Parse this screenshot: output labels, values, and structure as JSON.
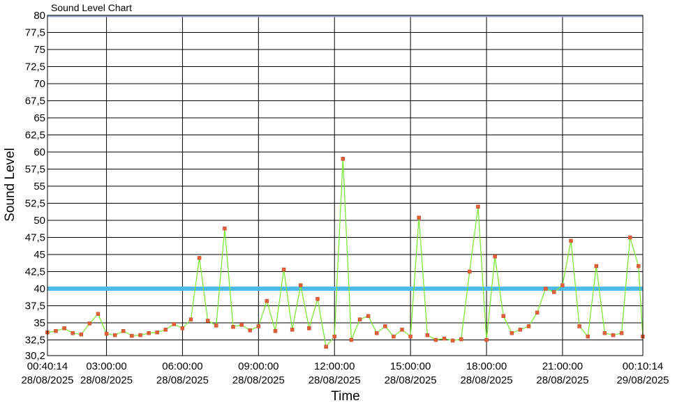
{
  "chart_data": {
    "type": "line",
    "title": "Sound Level Chart",
    "xlabel": "Time",
    "ylabel": "Sound Level",
    "ylim": [
      30.2,
      80
    ],
    "xlim": [
      "2025-08-28 00:40:14",
      "2025-08-29 00:10:14"
    ],
    "y_ticks": [
      "30,2",
      "32,5",
      "35",
      "37,5",
      "40",
      "42,5",
      "45",
      "47,5",
      "50",
      "52,5",
      "55",
      "57,5",
      "60",
      "62,5",
      "65",
      "67,5",
      "70",
      "72,5",
      "75",
      "77,5",
      "80"
    ],
    "x_ticks": [
      {
        "time": "00:40:14",
        "date": "28/08/2025"
      },
      {
        "time": "03:00:00",
        "date": "28/08/2025"
      },
      {
        "time": "06:00:00",
        "date": "28/08/2025"
      },
      {
        "time": "09:00:00",
        "date": "28/08/2025"
      },
      {
        "time": "12:00:00",
        "date": "28/08/2025"
      },
      {
        "time": "15:00:00",
        "date": "28/08/2025"
      },
      {
        "time": "18:00:00",
        "date": "28/08/2025"
      },
      {
        "time": "21:00:00",
        "date": "28/08/2025"
      },
      {
        "time": "00:10:14",
        "date": "29/08/2025"
      }
    ],
    "threshold": {
      "value": 40,
      "color": "#4fb8ec"
    },
    "top_line_value": 80,
    "colors": {
      "line": "#7ee83a",
      "marker": "#e0603a",
      "grid": "#000000",
      "top_line": "#9aa7d8"
    },
    "grid": true,
    "series": [
      {
        "x": [
          "00:40",
          "01:00",
          "01:20",
          "01:40",
          "02:00",
          "02:20",
          "02:40",
          "03:00",
          "03:20",
          "03:40",
          "04:00",
          "04:20",
          "04:40",
          "05:00",
          "05:20",
          "05:40",
          "06:00",
          "06:20",
          "06:40",
          "07:00",
          "07:20",
          "07:40",
          "08:00",
          "08:20",
          "08:40",
          "09:00",
          "09:20",
          "09:40",
          "10:00",
          "10:20",
          "10:40",
          "11:00",
          "11:20",
          "11:40",
          "12:00",
          "12:20",
          "12:40",
          "13:00",
          "13:20",
          "13:40",
          "14:00",
          "14:20",
          "14:40",
          "15:00",
          "15:20",
          "15:40",
          "16:00",
          "16:20",
          "16:40",
          "17:00",
          "17:20",
          "17:40",
          "18:00",
          "18:20",
          "18:40",
          "19:00",
          "19:20",
          "19:40",
          "20:00",
          "20:20",
          "20:40",
          "21:00",
          "21:20",
          "21:40",
          "22:00",
          "22:20",
          "22:40",
          "23:00",
          "23:20",
          "23:40",
          "00:00",
          "00:10"
        ],
        "values": [
          33.6,
          33.8,
          34.2,
          33.5,
          33.3,
          34.9,
          36.3,
          33.4,
          33.2,
          33.8,
          33.1,
          33.2,
          33.5,
          33.6,
          34.0,
          34.8,
          34.2,
          35.5,
          44.5,
          35.3,
          34.6,
          48.8,
          34.4,
          34.7,
          33.9,
          34.5,
          38.2,
          33.8,
          42.8,
          34.0,
          40.5,
          34.2,
          38.5,
          31.5,
          33.0,
          59.0,
          32.5,
          35.5,
          36.0,
          33.5,
          34.5,
          33.0,
          34.0,
          33.0,
          50.4,
          33.2,
          32.5,
          32.7,
          32.4,
          32.6,
          42.5,
          52.0,
          32.5,
          44.7,
          36.0,
          33.5,
          34.0,
          34.5,
          36.5,
          40.0,
          39.5,
          40.5,
          47.0,
          34.5,
          33.0,
          43.3,
          33.5,
          33.2,
          33.5,
          47.5,
          43.3,
          33.0
        ]
      }
    ]
  }
}
